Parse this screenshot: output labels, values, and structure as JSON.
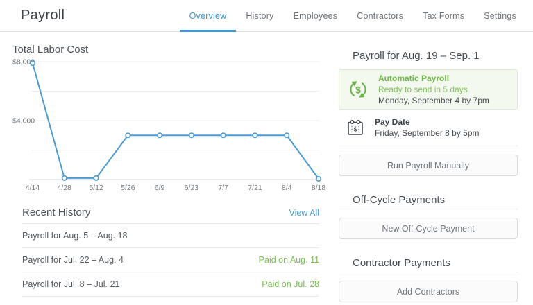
{
  "header": {
    "title": "Payroll",
    "tabs": [
      {
        "label": "Overview",
        "active": true
      },
      {
        "label": "History",
        "active": false
      },
      {
        "label": "Employees",
        "active": false
      },
      {
        "label": "Contractors",
        "active": false
      },
      {
        "label": "Tax Forms",
        "active": false
      },
      {
        "label": "Settings",
        "active": false
      }
    ]
  },
  "chart_data": {
    "type": "line",
    "title": "Total Labor Cost",
    "x": [
      "4/14",
      "4/28",
      "5/12",
      "5/26",
      "6/9",
      "6/23",
      "7/7",
      "7/21",
      "8/4",
      "8/18"
    ],
    "values": [
      7900,
      100,
      100,
      3000,
      3000,
      3000,
      3000,
      3000,
      3000,
      50
    ],
    "ylim": [
      0,
      8000
    ],
    "ytick_values": [
      8000,
      4000
    ],
    "ytick_labels": [
      "$8,000",
      "$4,000"
    ],
    "gridline_interval": 2000,
    "grid": true,
    "legend": "none",
    "line_color": "#4a9ad3",
    "marker": "open-circle"
  },
  "recent_history": {
    "title": "Recent History",
    "view_all_label": "View All",
    "rows": [
      {
        "label": "Payroll for Aug. 5 – Aug. 18",
        "status": ""
      },
      {
        "label": "Payroll for Jul. 22 – Aug. 4",
        "status": "Paid on Aug. 11"
      },
      {
        "label": "Payroll for Jul. 8 – Jul. 21",
        "status": "Paid on Jul. 28"
      }
    ]
  },
  "payroll_panel": {
    "title": "Payroll for Aug. 19 – Sep. 1",
    "automatic": {
      "icon": "recurring-dollar-icon",
      "title": "Automatic Payroll",
      "subtitle": "Ready to send in 5 days",
      "detail": "Monday, September 4 by 7pm"
    },
    "pay_date": {
      "icon": "calendar-icon",
      "title": "Pay Date",
      "detail": "Friday, September 8 by 5pm"
    },
    "run_manually_label": "Run Payroll Manually"
  },
  "off_cycle": {
    "title": "Off-Cycle Payments",
    "button_label": "New Off-Cycle Payment"
  },
  "contractor": {
    "title": "Contractor Payments",
    "button_label": "Add Contractors"
  },
  "colors": {
    "accent_blue": "#4495d0",
    "status_green": "#79bd52",
    "icon_green": "#67b447",
    "auto_box_bg": "#f3f9ee",
    "auto_box_border": "#dcead2"
  }
}
